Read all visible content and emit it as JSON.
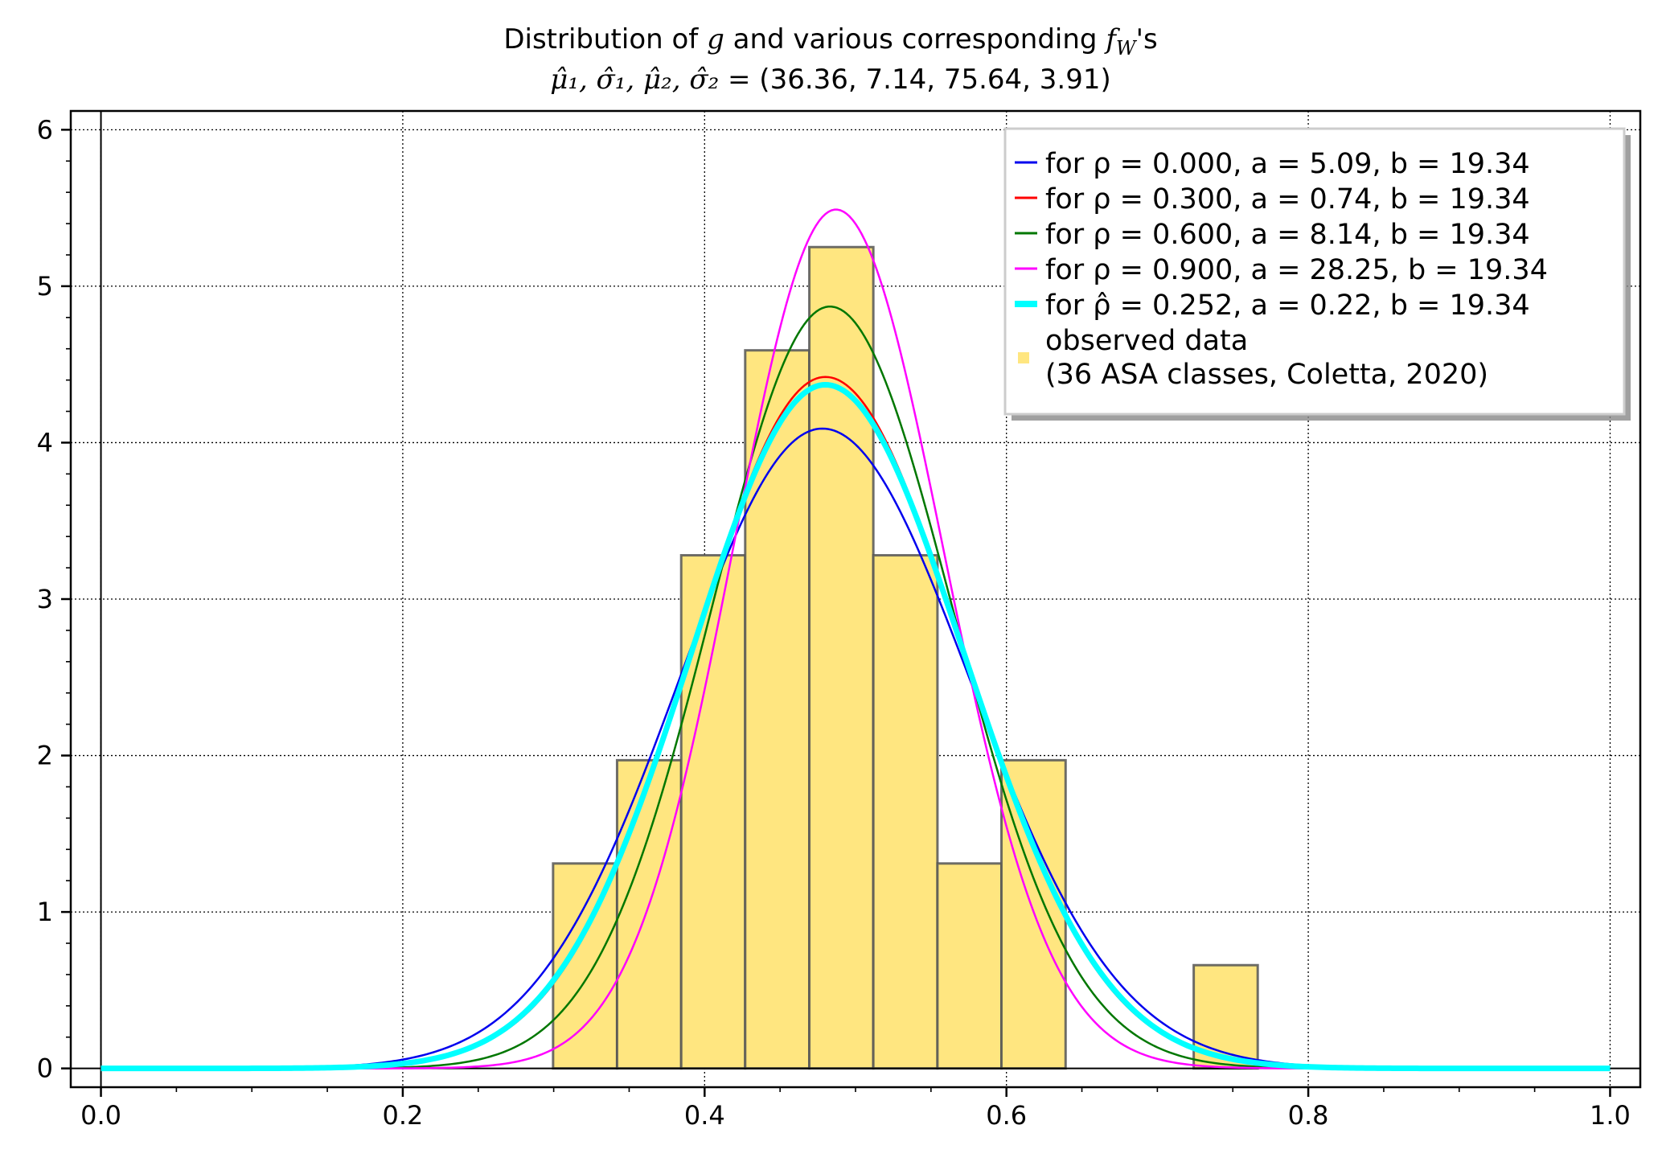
{
  "chart_data": {
    "type": "bar+line",
    "title": {
      "line1_parts": [
        {
          "t": "Distribution of ",
          "m": false
        },
        {
          "t": "g",
          "m": true
        },
        {
          "t": " and various corresponding ",
          "m": false
        },
        {
          "t": "f",
          "m": true
        },
        {
          "t": "W",
          "m": true,
          "sub": true
        },
        {
          "t": "'s",
          "m": false
        }
      ],
      "line2_math": "μ̂₁, σ̂₁, μ̂₂, σ̂₂ =",
      "line2_values": " (36.36, 7.14, 75.64, 3.91)"
    },
    "xlim": [
      -0.02,
      1.02
    ],
    "ylim": [
      -0.12,
      6.12
    ],
    "xticks": [
      0.0,
      0.2,
      0.4,
      0.6,
      0.8,
      1.0
    ],
    "xtick_labels": [
      "0.0",
      "0.2",
      "0.4",
      "0.6",
      "0.8",
      "1.0"
    ],
    "yticks": [
      0,
      1,
      2,
      3,
      4,
      5,
      6
    ],
    "ytick_labels": [
      "0",
      "1",
      "2",
      "3",
      "4",
      "5",
      "6"
    ],
    "grid": true,
    "histogram": {
      "name": "observed data (36 ASA classes, Coletta, 2020)",
      "color": "#ffe680",
      "edge_color": "#555555",
      "bins": [
        {
          "x0": 0.2996,
          "x1": 0.342,
          "height": 1.31
        },
        {
          "x0": 0.342,
          "x1": 0.3845,
          "height": 1.97
        },
        {
          "x0": 0.3845,
          "x1": 0.4269,
          "height": 3.28
        },
        {
          "x0": 0.4269,
          "x1": 0.4694,
          "height": 4.59
        },
        {
          "x0": 0.4694,
          "x1": 0.5118,
          "height": 5.25
        },
        {
          "x0": 0.5118,
          "x1": 0.5543,
          "height": 3.28
        },
        {
          "x0": 0.5543,
          "x1": 0.5967,
          "height": 1.31
        },
        {
          "x0": 0.5967,
          "x1": 0.6392,
          "height": 1.97
        },
        {
          "x0": 0.6392,
          "x1": 0.6816,
          "height": 0
        },
        {
          "x0": 0.6816,
          "x1": 0.7241,
          "height": 0
        },
        {
          "x0": 0.7241,
          "x1": 0.7665,
          "height": 0.66
        }
      ]
    },
    "series": [
      {
        "name": "for ρ = 0.000, a = 5.09, b = 19.34",
        "color": "#0000ee",
        "width": 2.5,
        "peak_x": 0.478,
        "peak_y": 4.09,
        "sigma_l": 0.095,
        "sigma_r": 0.098
      },
      {
        "name": "for ρ = 0.300, a = 0.74, b = 19.34",
        "color": "#ff0000",
        "width": 2.5,
        "peak_x": 0.48,
        "peak_y": 4.42,
        "sigma_l": 0.088,
        "sigma_r": 0.091
      },
      {
        "name": "for ρ = 0.600, a = 8.14, b = 19.34",
        "color": "#007700",
        "width": 2.5,
        "peak_x": 0.483,
        "peak_y": 4.87,
        "sigma_l": 0.078,
        "sigma_r": 0.081
      },
      {
        "name": "for ρ = 0.900, a = 28.25, b = 19.34",
        "color": "#ff00ff",
        "width": 2.5,
        "peak_x": 0.487,
        "peak_y": 5.49,
        "sigma_l": 0.068,
        "sigma_r": 0.071
      },
      {
        "name": "for ρ̂ = 0.252, a = 0.22, b = 19.34",
        "color": "#00ffff",
        "width": 7,
        "peak_x": 0.48,
        "peak_y": 4.37,
        "sigma_l": 0.089,
        "sigma_r": 0.092
      }
    ],
    "legend": {
      "placement": "top-right",
      "entries": [
        {
          "label": "for ρ =  0.000, a = 5.09, b = 19.34",
          "color": "#0000ee",
          "kind": "line",
          "lw": 3
        },
        {
          "label": "for ρ =  0.300, a = 0.74, b = 19.34",
          "color": "#ff0000",
          "kind": "line",
          "lw": 3
        },
        {
          "label": "for ρ =  0.600, a = 8.14, b = 19.34",
          "color": "#007700",
          "kind": "line",
          "lw": 3
        },
        {
          "label": "for ρ =  0.900, a = 28.25, b = 19.34",
          "color": "#ff00ff",
          "kind": "line",
          "lw": 3
        },
        {
          "label": "for ρ̂ =  0.252, a = 0.22, b = 19.34",
          "color": "#00ffff",
          "kind": "line",
          "lw": 8
        },
        {
          "label": "observed data",
          "label2": "(36 ASA classes, Coletta, 2020)",
          "color": "#ffe680",
          "kind": "patch"
        }
      ]
    }
  }
}
